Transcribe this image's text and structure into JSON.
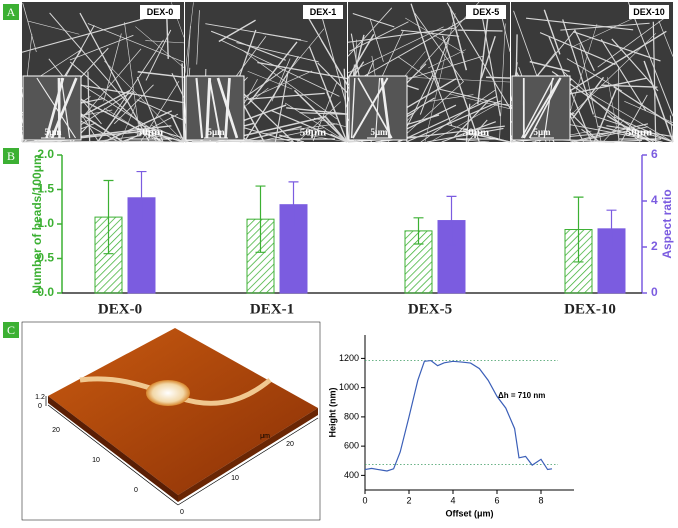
{
  "panel_labels": [
    "A",
    "B",
    "C"
  ],
  "sem_images": [
    {
      "label": "DEX-0",
      "inset_scale": "5μm",
      "scale": "50μm"
    },
    {
      "label": "DEX-1",
      "inset_scale": "5μm",
      "scale": "50μm"
    },
    {
      "label": "DEX-5",
      "inset_scale": "5μm",
      "scale": "50μm"
    },
    {
      "label": "DEX-10",
      "inset_scale": "5μm",
      "scale": "50μm"
    }
  ],
  "afm": {
    "z_labels": [
      "1.2",
      "0"
    ],
    "x_labels": [
      "0",
      "10",
      "20"
    ],
    "y_labels": [
      "0",
      "10",
      "20"
    ],
    "unit": "μm"
  },
  "chart_data": [
    {
      "type": "bar",
      "categories": [
        "DEX-0",
        "DEX-1",
        "DEX-5",
        "DEX-10"
      ],
      "y_label": "Number of beads/100μm",
      "y2_label": "Aspect ratio",
      "ylim": [
        0,
        2
      ],
      "yticks": [
        {
          "value": 0,
          "label": "0.0"
        },
        0.5,
        {
          "value": 1,
          "label": "1.0"
        },
        1.5,
        {
          "value": 2,
          "label": "2.0"
        }
      ],
      "y2lim": [
        0,
        6
      ],
      "y2ticks": [
        0,
        2,
        4,
        6
      ],
      "series": [
        {
          "color": "#3cb033",
          "hatch": true,
          "values": [
            1.1,
            1.07,
            0.9,
            0.92
          ],
          "errors": [
            0.53,
            0.48,
            0.19,
            0.47
          ]
        },
        {
          "color": "#7b5ce0",
          "axis": "y2",
          "values": [
            4.14,
            3.84,
            3.15,
            2.79
          ],
          "errors": [
            1.14,
            0.99,
            1.05,
            0.81
          ]
        }
      ]
    },
    {
      "type": "line",
      "x_label": "Offset (μm)",
      "y_label": "Height (nm)",
      "annotation": "Δh = 710 nm",
      "xlim": [
        0,
        9.5
      ],
      "xticks": [
        0,
        2,
        4,
        6,
        8
      ],
      "ylim": [
        300,
        1360
      ],
      "yticks": [
        400,
        600,
        800,
        1000,
        1200
      ],
      "reference_lines": [
        1185,
        475
      ],
      "series": [
        {
          "color": "#3b5fb8",
          "x": [
            0,
            0.3,
            0.6,
            1.0,
            1.3,
            1.6,
            2.0,
            2.4,
            2.7,
            3.0,
            3.3,
            3.6,
            4.0,
            4.4,
            4.8,
            5.2,
            5.6,
            6.0,
            6.4,
            6.8,
            7.0,
            7.3,
            7.6,
            8.0,
            8.3,
            8.5
          ],
          "values": [
            440,
            448,
            440,
            430,
            445,
            560,
            800,
            1050,
            1180,
            1185,
            1150,
            1170,
            1180,
            1175,
            1168,
            1130,
            1050,
            940,
            860,
            720,
            520,
            530,
            470,
            510,
            440,
            445
          ]
        }
      ]
    }
  ]
}
